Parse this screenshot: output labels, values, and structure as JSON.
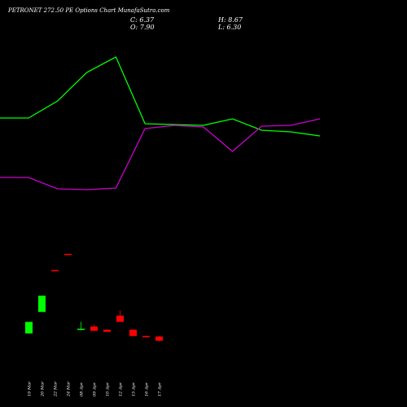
{
  "header": {
    "title": "PETRONET 272.50  PE Options  Chart MunafaSutra.com",
    "close_label": "C: 6.37",
    "high_label": "H: 8.67",
    "open_label": "O: 7.90",
    "low_label": "L: 6.30"
  },
  "colors": {
    "background": "#000000",
    "up": "#00ff00",
    "down": "#ff0000",
    "line_green": "#00ff00",
    "line_magenta": "#cc00cc",
    "text": "#ffffff"
  },
  "chart_data": {
    "type": "candlestick",
    "title": "PETRONET 272.50  PE Options  Chart MunafaSutra.com",
    "categories": [
      "19 Mar",
      "20 Mar",
      "22 Mar",
      "24 Mar",
      "08 Apr",
      "09 Apr",
      "10 Apr",
      "12 Apr",
      "15 Apr",
      "16 Apr",
      "17 Apr"
    ],
    "candles": [
      {
        "date": "19 Mar",
        "open": 1.4,
        "high": 3.6,
        "low": 1.4,
        "close": 3.6
      },
      {
        "date": "20 Mar",
        "open": 5.5,
        "high": 8.6,
        "low": 5.5,
        "close": 8.6
      },
      {
        "date": "22 Mar",
        "open": 13.5,
        "high": 13.5,
        "low": 13.4,
        "close": 13.4
      },
      {
        "date": "24 Mar",
        "open": 16.6,
        "high": 16.6,
        "low": 16.5,
        "close": 16.5
      },
      {
        "date": "08 Apr",
        "open": 2.2,
        "high": 3.6,
        "low": 2.0,
        "close": 2.3
      },
      {
        "date": "09 Apr",
        "open": 2.7,
        "high": 3.1,
        "low": 1.8,
        "close": 1.9
      },
      {
        "date": "10 Apr",
        "open": 2.1,
        "high": 2.2,
        "low": 1.7,
        "close": 1.7
      },
      {
        "date": "12 Apr",
        "open": 4.8,
        "high": 5.8,
        "low": 3.6,
        "close": 3.6
      },
      {
        "date": "15 Apr",
        "open": 2.1,
        "high": 2.2,
        "low": 0.8,
        "close": 0.9
      },
      {
        "date": "16 Apr",
        "open": 0.9,
        "high": 1.0,
        "low": 0.7,
        "close": 0.8
      },
      {
        "date": "17 Apr",
        "open": 0.8,
        "high": 0.9,
        "low": -0.1,
        "close": 0.0
      }
    ],
    "line_x": [
      "",
      "19 Mar",
      "20 Mar",
      "22 Mar",
      "24 Mar",
      "08 Apr",
      "09 Apr",
      "10 Apr",
      "12 Apr",
      "15 Apr",
      "16 Apr",
      "17 Apr"
    ],
    "line_series": [
      {
        "color": "#00ff00",
        "values": [
          145,
          145,
          124,
          89,
          70,
          152,
          153,
          154,
          146,
          160,
          162,
          167
        ]
      },
      {
        "color": "#cc00cc",
        "values": [
          218,
          218,
          232,
          233,
          231,
          158,
          154,
          156,
          186,
          155,
          154,
          146
        ]
      }
    ],
    "line_ylim": [
      0,
      260
    ],
    "ylim": [
      -1,
      27
    ],
    "grid": false
  }
}
